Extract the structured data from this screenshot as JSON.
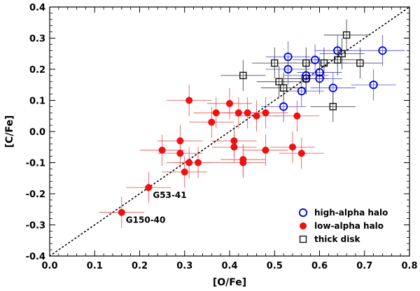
{
  "chart_data": {
    "type": "scatter",
    "title": "",
    "xlabel": "[O/Fe]",
    "ylabel": "[C/Fe]",
    "xlim": [
      0.0,
      0.8
    ],
    "ylim": [
      -0.4,
      0.4
    ],
    "xticks": [
      0.0,
      0.1,
      0.2,
      0.3,
      0.4,
      0.5,
      0.6,
      0.7,
      0.8
    ],
    "yticks": [
      -0.4,
      -0.3,
      -0.2,
      -0.1,
      0.0,
      0.1,
      0.2,
      0.3,
      0.4
    ],
    "xtick_labels": [
      "0.0",
      "0.1",
      "0.2",
      "0.3",
      "0.4",
      "0.5",
      "0.6",
      "0.7",
      "0.8"
    ],
    "ytick_labels": [
      "-0.4",
      "-0.3",
      "-0.2",
      "-0.1",
      "0.0",
      "0.1",
      "0.2",
      "0.3",
      "0.4"
    ],
    "reference_line": {
      "label": "one-to-one",
      "from": [
        0.0,
        -0.4
      ],
      "to": [
        0.8,
        0.4
      ],
      "style": "dotted"
    },
    "legend_position": "bottom-right",
    "series": [
      {
        "name": "high-alpha halo",
        "marker": "open-circle",
        "color": "#0000dd",
        "points": [
          {
            "x": 0.52,
            "y": 0.08,
            "ex": 0.05,
            "ey": 0.05
          },
          {
            "x": 0.53,
            "y": 0.24,
            "ex": 0.05,
            "ey": 0.05
          },
          {
            "x": 0.53,
            "y": 0.2,
            "ex": 0.05,
            "ey": 0.05
          },
          {
            "x": 0.56,
            "y": 0.13,
            "ex": 0.05,
            "ey": 0.05
          },
          {
            "x": 0.57,
            "y": 0.18,
            "ex": 0.05,
            "ey": 0.05
          },
          {
            "x": 0.57,
            "y": 0.17,
            "ex": 0.05,
            "ey": 0.05
          },
          {
            "x": 0.59,
            "y": 0.23,
            "ex": 0.05,
            "ey": 0.05
          },
          {
            "x": 0.6,
            "y": 0.19,
            "ex": 0.05,
            "ey": 0.05
          },
          {
            "x": 0.6,
            "y": 0.17,
            "ex": 0.05,
            "ey": 0.05
          },
          {
            "x": 0.63,
            "y": 0.14,
            "ex": 0.05,
            "ey": 0.05
          },
          {
            "x": 0.64,
            "y": 0.26,
            "ex": 0.05,
            "ey": 0.05
          },
          {
            "x": 0.72,
            "y": 0.15,
            "ex": 0.05,
            "ey": 0.05
          },
          {
            "x": 0.74,
            "y": 0.26,
            "ex": 0.05,
            "ey": 0.05
          }
        ]
      },
      {
        "name": "low-alpha halo",
        "marker": "filled-circle",
        "color": "#ee1111",
        "points": [
          {
            "x": 0.16,
            "y": -0.26,
            "ex": 0.05,
            "ey": 0.05
          },
          {
            "x": 0.22,
            "y": -0.18,
            "ex": 0.05,
            "ey": 0.05
          },
          {
            "x": 0.25,
            "y": -0.06,
            "ex": 0.05,
            "ey": 0.05
          },
          {
            "x": 0.29,
            "y": -0.03,
            "ex": 0.05,
            "ey": 0.05
          },
          {
            "x": 0.29,
            "y": -0.07,
            "ex": 0.05,
            "ey": 0.05
          },
          {
            "x": 0.3,
            "y": -0.13,
            "ex": 0.05,
            "ey": 0.05
          },
          {
            "x": 0.31,
            "y": 0.1,
            "ex": 0.05,
            "ey": 0.05
          },
          {
            "x": 0.31,
            "y": -0.1,
            "ex": 0.05,
            "ey": 0.05
          },
          {
            "x": 0.33,
            "y": -0.1,
            "ex": 0.05,
            "ey": 0.05
          },
          {
            "x": 0.36,
            "y": 0.03,
            "ex": 0.05,
            "ey": 0.05
          },
          {
            "x": 0.37,
            "y": 0.06,
            "ex": 0.05,
            "ey": 0.05
          },
          {
            "x": 0.4,
            "y": 0.09,
            "ex": 0.05,
            "ey": 0.05
          },
          {
            "x": 0.41,
            "y": -0.03,
            "ex": 0.05,
            "ey": 0.05
          },
          {
            "x": 0.41,
            "y": -0.05,
            "ex": 0.05,
            "ey": 0.05
          },
          {
            "x": 0.42,
            "y": 0.06,
            "ex": 0.05,
            "ey": 0.05
          },
          {
            "x": 0.43,
            "y": -0.1,
            "ex": 0.05,
            "ey": 0.05
          },
          {
            "x": 0.43,
            "y": -0.09,
            "ex": 0.05,
            "ey": 0.05
          },
          {
            "x": 0.44,
            "y": 0.06,
            "ex": 0.05,
            "ey": 0.05
          },
          {
            "x": 0.46,
            "y": 0.05,
            "ex": 0.05,
            "ey": 0.05
          },
          {
            "x": 0.48,
            "y": 0.06,
            "ex": 0.05,
            "ey": 0.05
          },
          {
            "x": 0.48,
            "y": -0.06,
            "ex": 0.05,
            "ey": 0.05
          },
          {
            "x": 0.54,
            "y": -0.05,
            "ex": 0.05,
            "ey": 0.05
          },
          {
            "x": 0.55,
            "y": 0.05,
            "ex": 0.05,
            "ey": 0.05
          },
          {
            "x": 0.56,
            "y": -0.07,
            "ex": 0.05,
            "ey": 0.05
          }
        ]
      },
      {
        "name": "thick disk",
        "marker": "open-square",
        "color": "#111111",
        "points": [
          {
            "x": 0.43,
            "y": 0.18,
            "ex": 0.05,
            "ey": 0.05
          },
          {
            "x": 0.5,
            "y": 0.22,
            "ex": 0.05,
            "ey": 0.05
          },
          {
            "x": 0.51,
            "y": 0.16,
            "ex": 0.05,
            "ey": 0.05
          },
          {
            "x": 0.52,
            "y": 0.14,
            "ex": 0.05,
            "ey": 0.05
          },
          {
            "x": 0.57,
            "y": 0.22,
            "ex": 0.05,
            "ey": 0.05
          },
          {
            "x": 0.57,
            "y": 0.17,
            "ex": 0.05,
            "ey": 0.05
          },
          {
            "x": 0.61,
            "y": 0.22,
            "ex": 0.05,
            "ey": 0.05
          },
          {
            "x": 0.63,
            "y": 0.08,
            "ex": 0.05,
            "ey": 0.05
          },
          {
            "x": 0.64,
            "y": 0.23,
            "ex": 0.05,
            "ey": 0.05
          },
          {
            "x": 0.65,
            "y": 0.25,
            "ex": 0.05,
            "ey": 0.05
          },
          {
            "x": 0.66,
            "y": 0.31,
            "ex": 0.05,
            "ey": 0.05
          },
          {
            "x": 0.69,
            "y": 0.22,
            "ex": 0.05,
            "ey": 0.05
          }
        ]
      }
    ],
    "annotations": [
      {
        "text": "G53-41",
        "x": 0.22,
        "y": -0.18
      },
      {
        "text": "G150-40",
        "x": 0.16,
        "y": -0.26
      }
    ],
    "legend": [
      {
        "label": "high-alpha halo",
        "marker": "open-circle",
        "color": "#0000dd"
      },
      {
        "label": "low-alpha halo",
        "marker": "filled-circle",
        "color": "#ee1111"
      },
      {
        "label": "thick disk",
        "marker": "open-square",
        "color": "#111111"
      }
    ]
  }
}
